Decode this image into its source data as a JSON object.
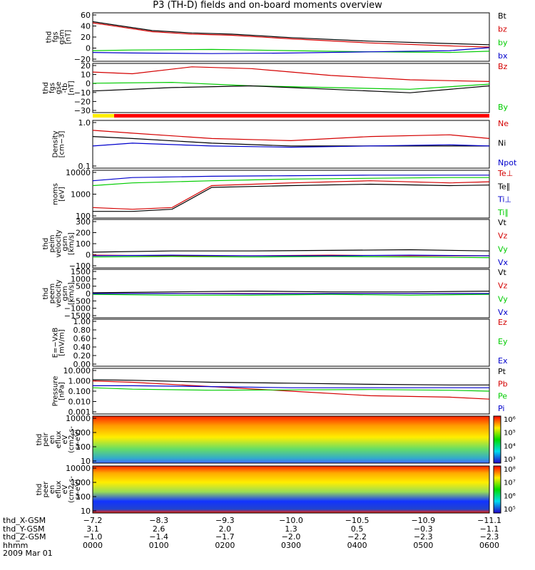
{
  "title": "P3 (TH-D) fields and on-board moments overview",
  "chart_data": {
    "type": "line",
    "panels": [
      {
        "ylabel": [
          "thd",
          "fgs",
          "gsm",
          "[nT]"
        ],
        "yticks": [
          "60",
          "40",
          "20",
          "0",
          "−20"
        ],
        "ylim": [
          -20,
          62
        ],
        "legend": [
          {
            "name": "Bt",
            "color": "#000000"
          },
          {
            "name": "bz",
            "color": "#d40000"
          },
          {
            "name": "by",
            "color": "#00cc00"
          },
          {
            "name": "bx",
            "color": "#0000cc"
          }
        ],
        "series": [
          {
            "name": "Bt",
            "color": "#000000",
            "x": [
              0,
              0.05,
              0.15,
              0.25,
              0.35,
              0.5,
              0.7,
              0.9,
              1
            ],
            "values": [
              47,
              42,
              32,
              28,
              26,
              20,
              14,
              10,
              8
            ]
          },
          {
            "name": "bz",
            "color": "#d40000",
            "x": [
              0,
              0.05,
              0.15,
              0.25,
              0.35,
              0.5,
              0.7,
              0.9,
              1
            ],
            "values": [
              45,
              40,
              30,
              26,
              24,
              18,
              11,
              6,
              4
            ]
          },
          {
            "name": "by",
            "color": "#00cc00",
            "x": [
              0,
              0.1,
              0.3,
              0.5,
              0.7,
              0.9,
              1
            ],
            "values": [
              -2,
              -1,
              0,
              -2,
              -4,
              -5,
              -3
            ]
          },
          {
            "name": "bx",
            "color": "#0000cc",
            "x": [
              0,
              0.1,
              0.3,
              0.5,
              0.7,
              0.9,
              1
            ],
            "values": [
              -5,
              -6,
              -7,
              -6,
              -4,
              -2,
              3
            ]
          }
        ]
      },
      {
        "ylabel": [
          "thd",
          "fgs",
          "gse",
          "-tb",
          "[nT]"
        ],
        "yticks": [
          "20",
          "10",
          "0",
          "−10",
          "−20",
          "−30"
        ],
        "ylim": [
          -35,
          22
        ],
        "legend": [
          {
            "name": "Bz",
            "color": "#d40000"
          },
          {
            "name": "By",
            "color": "#00cc00"
          }
        ],
        "series": [
          {
            "name": "Bz",
            "color": "#d40000",
            "x": [
              0,
              0.1,
              0.25,
              0.4,
              0.6,
              0.8,
              1
            ],
            "values": [
              12,
              10,
              18,
              16,
              8,
              3,
              1
            ]
          },
          {
            "name": "By",
            "color": "#00cc00",
            "x": [
              0,
              0.2,
              0.4,
              0.6,
              0.8,
              1
            ],
            "values": [
              -1,
              0,
              -4,
              -6,
              -8,
              -2
            ]
          },
          {
            "name": "",
            "color": "#000000",
            "x": [
              0,
              0.2,
              0.4,
              0.6,
              0.8,
              1
            ],
            "values": [
              -10,
              -6,
              -4,
              -8,
              -12,
              -4
            ]
          }
        ]
      },
      {
        "ylabel": [
          "Density",
          "[cm−3]"
        ],
        "yticks": [
          "1.0",
          "0.1"
        ],
        "ylim": [
          0.09,
          1.2
        ],
        "legend": [
          {
            "name": "Ne",
            "color": "#d40000"
          },
          {
            "name": "Ni",
            "color": "#000000"
          },
          {
            "name": "Npot",
            "color": "#0000cc"
          }
        ],
        "series": [
          {
            "name": "Ne",
            "color": "#d40000",
            "x": [
              0,
              0.1,
              0.3,
              0.5,
              0.7,
              0.9,
              1
            ],
            "values": [
              0.7,
              0.6,
              0.45,
              0.4,
              0.5,
              0.55,
              0.45
            ]
          },
          {
            "name": "Ni",
            "color": "#000000",
            "x": [
              0,
              0.1,
              0.3,
              0.5,
              0.7,
              0.9,
              1
            ],
            "values": [
              0.5,
              0.45,
              0.35,
              0.3,
              0.3,
              0.3,
              0.3
            ]
          },
          {
            "name": "Npot",
            "color": "#0000cc",
            "x": [
              0,
              0.1,
              0.3,
              0.5,
              0.7,
              0.9,
              1
            ],
            "values": [
              0.3,
              0.35,
              0.3,
              0.28,
              0.3,
              0.32,
              0.3
            ]
          }
        ]
      },
      {
        "ylabel": [
          "moms",
          "[eV]"
        ],
        "yticks": [
          "10000",
          "1000",
          "100"
        ],
        "ylim": [
          100,
          15000
        ],
        "legend": [
          {
            "name": "Te⊥",
            "color": "#d40000"
          },
          {
            "name": "Te∥",
            "color": "#000000"
          },
          {
            "name": "Ti⊥",
            "color": "#0000cc"
          },
          {
            "name": "Ti∥",
            "color": "#00cc00"
          }
        ],
        "series": [
          {
            "name": "Te⊥",
            "color": "#d40000",
            "x": [
              0,
              0.1,
              0.2,
              0.3,
              0.5,
              0.7,
              0.9,
              1
            ],
            "values": [
              300,
              250,
              300,
              3000,
              4000,
              5000,
              4000,
              4500
            ]
          },
          {
            "name": "Te∥",
            "color": "#000000",
            "x": [
              0,
              0.1,
              0.2,
              0.3,
              0.5,
              0.7,
              0.9,
              1
            ],
            "values": [
              200,
              200,
              250,
              2500,
              3000,
              3500,
              3000,
              3200
            ]
          },
          {
            "name": "Ti⊥",
            "color": "#0000cc",
            "x": [
              0,
              0.1,
              0.3,
              0.5,
              0.7,
              0.9,
              1
            ],
            "values": [
              5000,
              7000,
              8000,
              8500,
              9000,
              9000,
              9000
            ]
          },
          {
            "name": "Ti∥",
            "color": "#00cc00",
            "x": [
              0,
              0.1,
              0.3,
              0.5,
              0.7,
              0.9,
              1
            ],
            "values": [
              3000,
              4000,
              5000,
              6000,
              6500,
              7000,
              7000
            ]
          }
        ]
      },
      {
        "ylabel": [
          "thd",
          "peim",
          "velocity",
          "gsm",
          "[km/s]"
        ],
        "yticks": [
          "300",
          "200",
          "100",
          "0",
          "−100"
        ],
        "ylim": [
          -100,
          300
        ],
        "legend": [
          {
            "name": "Vt",
            "color": "#000000"
          },
          {
            "name": "Vz",
            "color": "#d40000"
          },
          {
            "name": "Vy",
            "color": "#00cc00"
          },
          {
            "name": "Vx",
            "color": "#0000cc"
          }
        ],
        "series": [
          {
            "name": "Vt",
            "color": "#000000",
            "x": [
              0,
              0.2,
              0.4,
              0.6,
              0.8,
              1
            ],
            "values": [
              30,
              40,
              40,
              45,
              50,
              40
            ]
          },
          {
            "name": "Vz",
            "color": "#d40000",
            "x": [
              0,
              0.2,
              0.4,
              0.6,
              0.8,
              1
            ],
            "values": [
              5,
              0,
              0,
              5,
              0,
              0
            ]
          },
          {
            "name": "Vy",
            "color": "#00cc00",
            "x": [
              0,
              0.2,
              0.4,
              0.6,
              0.8,
              1
            ],
            "values": [
              -10,
              -5,
              -10,
              -5,
              -10,
              -15
            ]
          },
          {
            "name": "Vx",
            "color": "#0000cc",
            "x": [
              0,
              0.2,
              0.4,
              0.6,
              0.8,
              1
            ],
            "values": [
              0,
              5,
              0,
              0,
              5,
              0
            ]
          }
        ]
      },
      {
        "ylabel": [
          "thd",
          "peem",
          "velocity",
          "gsm",
          "[km/s]"
        ],
        "yticks": [
          "1500",
          "1000",
          "500",
          "0",
          "−500",
          "−1000",
          "−1500"
        ],
        "ylim": [
          -1500,
          1500
        ],
        "legend": [
          {
            "name": "Vt",
            "color": "#000000"
          },
          {
            "name": "Vz",
            "color": "#d40000"
          },
          {
            "name": "Vy",
            "color": "#00cc00"
          },
          {
            "name": "Vx",
            "color": "#0000cc"
          }
        ],
        "series": [
          {
            "name": "Vt",
            "color": "#000000",
            "x": [
              0,
              0.2,
              0.4,
              0.6,
              0.8,
              1
            ],
            "values": [
              50,
              100,
              150,
              100,
              100,
              150
            ]
          },
          {
            "name": "Vz",
            "color": "#d40000",
            "x": [
              0,
              0.2,
              0.4,
              0.6,
              0.8,
              1
            ],
            "values": [
              0,
              10,
              0,
              10,
              0,
              0
            ]
          },
          {
            "name": "Vy",
            "color": "#00cc00",
            "x": [
              0,
              0.2,
              0.4,
              0.6,
              0.8,
              1
            ],
            "values": [
              -50,
              -100,
              -100,
              -50,
              -100,
              -50
            ]
          },
          {
            "name": "Vx",
            "color": "#0000cc",
            "x": [
              0,
              0.2,
              0.4,
              0.6,
              0.8,
              1
            ],
            "values": [
              0,
              0,
              -20,
              0,
              0,
              0
            ]
          }
        ]
      },
      {
        "ylabel": [
          "E=−VxB",
          "[mV/m]"
        ],
        "yticks": [
          "1.00",
          "0.80",
          "0.60",
          "0.40",
          "0.20",
          "0.00"
        ],
        "ylim": [
          0,
          1
        ],
        "legend": [
          {
            "name": "Ez",
            "color": "#d40000"
          },
          {
            "name": "Ey",
            "color": "#00cc00"
          },
          {
            "name": "Ex",
            "color": "#0000cc"
          }
        ],
        "series": []
      },
      {
        "ylabel": [
          "Pressure",
          "[nPa]"
        ],
        "yticks": [
          "10.000",
          "1.000",
          "0.100",
          "0.010",
          "0.001"
        ],
        "ylim": [
          0.001,
          10
        ],
        "legend": [
          {
            "name": "Pt",
            "color": "#000000"
          },
          {
            "name": "Pb",
            "color": "#d40000"
          },
          {
            "name": "Pe",
            "color": "#00cc00"
          },
          {
            "name": "Pi",
            "color": "#0000cc"
          }
        ],
        "series": [
          {
            "name": "Pt",
            "color": "#000000",
            "x": [
              0,
              0.1,
              0.3,
              0.5,
              0.7,
              0.9,
              1
            ],
            "values": [
              1.0,
              0.9,
              0.6,
              0.5,
              0.4,
              0.35,
              0.35
            ]
          },
          {
            "name": "Pb",
            "color": "#d40000",
            "x": [
              0,
              0.1,
              0.3,
              0.5,
              0.7,
              0.9,
              1
            ],
            "values": [
              0.8,
              0.6,
              0.25,
              0.1,
              0.04,
              0.03,
              0.02
            ]
          },
          {
            "name": "Pe",
            "color": "#00cc00",
            "x": [
              0,
              0.1,
              0.3,
              0.5,
              0.7,
              0.9,
              1
            ],
            "values": [
              0.2,
              0.15,
              0.12,
              0.13,
              0.14,
              0.12,
              0.1
            ]
          },
          {
            "name": "Pi",
            "color": "#0000cc",
            "x": [
              0,
              0.1,
              0.3,
              0.5,
              0.7,
              0.9,
              1
            ],
            "values": [
              0.3,
              0.3,
              0.25,
              0.2,
              0.2,
              0.2,
              0.2
            ]
          }
        ]
      },
      {
        "type": "heatmap",
        "ylabel": [
          "thd",
          "peir",
          "en",
          "eflux",
          "eV",
          "(cm2-s-",
          "sr-eV)"
        ],
        "yticks": [
          "10000",
          "1000",
          "100",
          "10"
        ],
        "colorbar": [
          "10⁶",
          "10⁵",
          "10⁴",
          "10³"
        ]
      },
      {
        "type": "heatmap",
        "ylabel": [
          "thd",
          "peer",
          "en",
          "eflux",
          "eV",
          "(cm2-s-",
          "sr-eV)"
        ],
        "yticks": [
          "10000",
          "1000",
          "100",
          "10"
        ],
        "colorbar": [
          "10⁸",
          "10⁷",
          "10⁶",
          "10⁵"
        ]
      }
    ],
    "xaxis": {
      "labels": [
        "thd_X-GSM",
        "thd_Y-GSM",
        "thd_Z-GSM",
        "hhmm",
        "2009 Mar 01"
      ],
      "ticks": [
        {
          "x": "−7.2",
          "y": "3.1",
          "z": "−1.0",
          "t": "0000"
        },
        {
          "x": "−8.3",
          "y": "2.6",
          "z": "−1.4",
          "t": "0100"
        },
        {
          "x": "−9.3",
          "y": "2.0",
          "z": "−1.7",
          "t": "0200"
        },
        {
          "x": "−10.0",
          "y": "1.3",
          "z": "−2.0",
          "t": "0300"
        },
        {
          "x": "−10.5",
          "y": "0.5",
          "z": "−2.2",
          "t": "0400"
        },
        {
          "x": "−10.9",
          "y": "−0.3",
          "z": "−2.3",
          "t": "0500"
        },
        {
          "x": "−11.1",
          "y": "−1.1",
          "z": "−2.3",
          "t": "0600"
        }
      ]
    }
  }
}
